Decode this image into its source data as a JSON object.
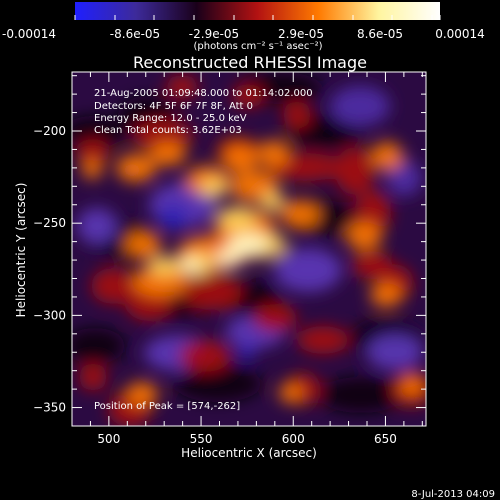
{
  "colors": {
    "background": "#000000",
    "foreground": "#ffffff",
    "colorbar_stops": [
      "#1f1fff",
      "#3d2a9a",
      "#1a001a",
      "#b31212",
      "#ff7a00",
      "#fff5a0",
      "#ffffff"
    ]
  },
  "colorbar": {
    "tick_labels": [
      "-0.00014",
      "-8.6e-05",
      "-2.9e-05",
      "2.9e-05",
      "8.6e-05",
      "0.00014"
    ],
    "unit_label": "(photons cm⁻² s⁻¹ asec⁻²)"
  },
  "chart_data": {
    "type": "heatmap",
    "title": "Reconstructed RHESSI Image",
    "xlabel": "Heliocentric X (arcsec)",
    "ylabel": "Heliocentric Y (arcsec)",
    "xlim": [
      480,
      672
    ],
    "ylim": [
      -360,
      -168
    ],
    "x_ticks": [
      500,
      550,
      600,
      650
    ],
    "y_ticks": [
      -200,
      -250,
      -300,
      -350
    ],
    "x_tick_labels": [
      "500",
      "550",
      "600",
      "650"
    ],
    "y_tick_labels": [
      "−200",
      "−250",
      "−300",
      "−350"
    ],
    "annotations": [
      "21-Aug-2005 01:09:48.000 to 01:14:02.000",
      "Detectors: 4F 5F 6F 7F 8F, Att 0",
      "Energy Range: 12.0 - 25.0 keV",
      "Clean    Total counts: 3.62E+03"
    ],
    "peak_label": "Position of Peak = [574,-262]",
    "peak_position": [
      574,
      -262
    ],
    "footer_date": "8-Jul-2013 04:09"
  }
}
